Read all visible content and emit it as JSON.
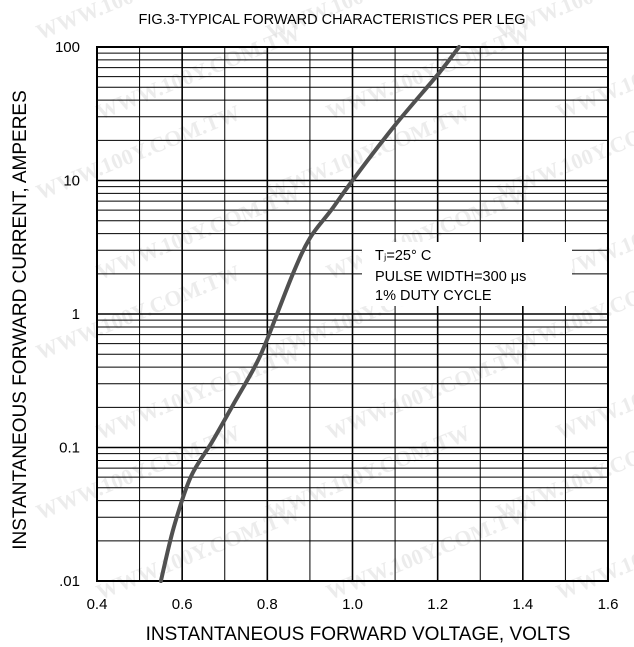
{
  "chart_data": {
    "type": "line",
    "title": "FIG.3-TYPICAL FORWARD CHARACTERISTICS PER LEG",
    "xlabel": "INSTANTANEOUS FORWARD VOLTAGE, VOLTS",
    "ylabel": "INSTANTANEOUS FORWARD CURRENT, AMPERES",
    "xlim": [
      0.4,
      1.6
    ],
    "ylim": [
      0.01,
      100
    ],
    "yscale": "log",
    "grid": true,
    "x_ticks": [
      "0.4",
      "0.6",
      "0.8",
      "1.0",
      "1.2",
      "1.4",
      "1.6"
    ],
    "y_ticks": [
      ".01",
      "0.1",
      "1",
      "10",
      "100"
    ],
    "annotation": {
      "lines": [
        "Tⱼ=25° C",
        "PULSE WIDTH=300 μs",
        "1% DUTY CYCLE"
      ]
    },
    "watermark": "WWW.100Y.COM.TW",
    "series": [
      {
        "x": [
          0.55,
          0.58,
          0.62,
          0.67,
          0.72,
          0.77,
          0.8,
          0.86,
          0.9,
          0.95,
          1.0,
          1.1,
          1.2,
          1.25
        ],
        "y": [
          0.01,
          0.025,
          0.06,
          0.11,
          0.21,
          0.4,
          0.65,
          2.0,
          3.7,
          6.0,
          10.0,
          26.0,
          62.0,
          100.0
        ]
      }
    ]
  }
}
